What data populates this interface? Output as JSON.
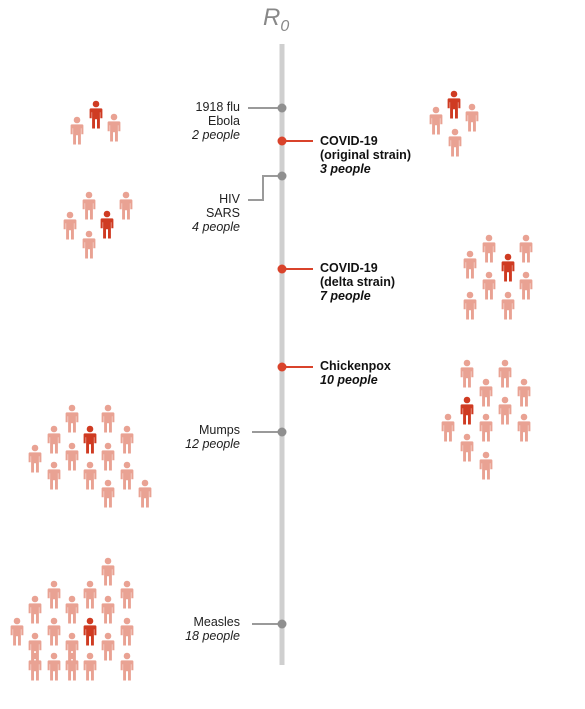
{
  "axis_title": {
    "main": "R",
    "sub": "0"
  },
  "colors": {
    "axis": "#cfcfcf",
    "connector_grey": "#9a9a9a",
    "dot_grey": "#8f8f8f",
    "highlight_red": "#d9432b",
    "person_light": "#e9a293",
    "person_dark": "#cf3b22"
  },
  "chart_data": {
    "type": "diagram",
    "title": "R0",
    "diseases": [
      {
        "id": "flu-ebola",
        "side": "left",
        "lines": [
          "1918 flu",
          "Ebola"
        ],
        "count_text": "2 people",
        "r0": 2,
        "highlight": false
      },
      {
        "id": "covid-original",
        "side": "right",
        "lines": [
          "COVID-19",
          "(original strain)"
        ],
        "count_text": "3 people",
        "r0": 3,
        "highlight": true
      },
      {
        "id": "hiv-sars",
        "side": "left",
        "lines": [
          "HIV",
          "SARS"
        ],
        "count_text": "4 people",
        "r0": 4,
        "highlight": false
      },
      {
        "id": "covid-delta",
        "side": "right",
        "lines": [
          "COVID-19",
          "(delta strain)"
        ],
        "count_text": "7 people",
        "r0": 7,
        "highlight": true
      },
      {
        "id": "chickenpox",
        "side": "right",
        "lines": [
          "Chickenpox"
        ],
        "count_text": "10 people",
        "r0": 10,
        "highlight": true
      },
      {
        "id": "mumps",
        "side": "left",
        "lines": [
          "Mumps"
        ],
        "count_text": "12 people",
        "r0": 12,
        "highlight": false
      },
      {
        "id": "measles",
        "side": "left",
        "lines": [
          "Measles"
        ],
        "count_text": "18 people",
        "r0": 18,
        "highlight": false
      }
    ]
  }
}
